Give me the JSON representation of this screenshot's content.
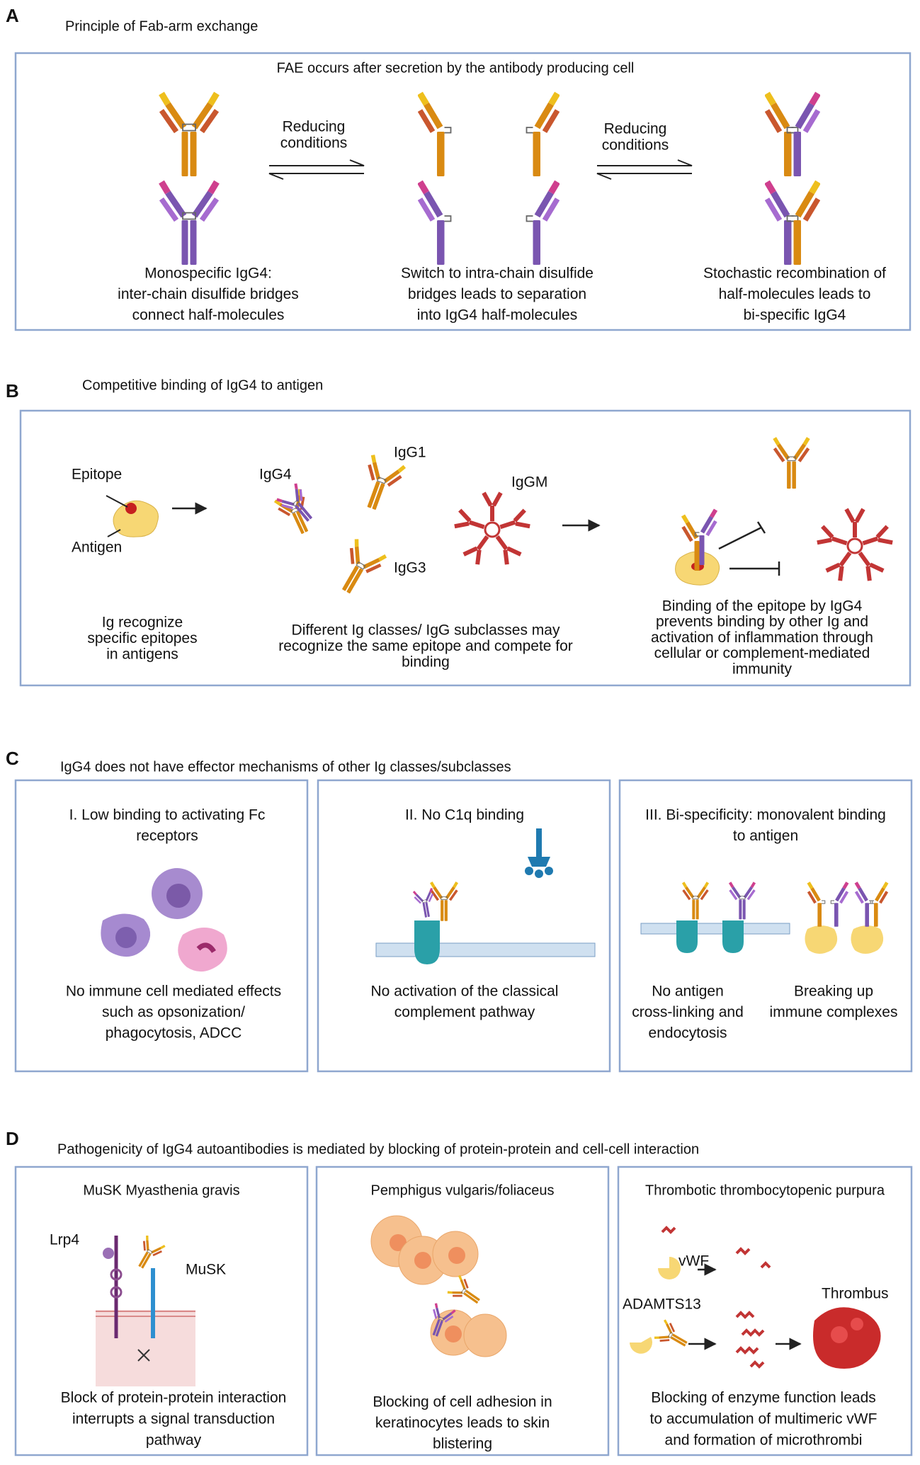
{
  "panel_a": {
    "letter": "A",
    "title": "Principle of Fab-arm exchange",
    "subtitle": "FAE occurs after secretion by the antibody producing cell",
    "arrow_labels": [
      [
        "Reducing",
        "conditions"
      ],
      [
        "Reducing",
        "conditions"
      ]
    ],
    "captions": [
      [
        "Monospecific IgG4:",
        "inter-chain disulfide bridges",
        "connect half-molecules"
      ],
      [
        "Switch to intra-chain disulfide",
        "bridges leads to separation",
        "into IgG4 half-molecules"
      ],
      [
        "Stochastic recombination of",
        "half-molecules leads to",
        "bi-specific IgG4"
      ]
    ]
  },
  "panel_b": {
    "letter": "B",
    "title": "Competitive binding of IgG4 to antigen",
    "labels": [
      "Epitope",
      "Antigen",
      "IgG4",
      "IgG1",
      "IgGM",
      "IgG3"
    ],
    "captions": [
      [
        "Ig recognize",
        "specific epitopes",
        "in antigens"
      ],
      [
        "Different Ig classes/ IgG subclasses may",
        "recognize the same epitope and compete for",
        "binding"
      ],
      [
        "Binding of the epitope by IgG4",
        "prevents binding by other Ig and",
        "activation of inflammation through",
        "cellular or complement-mediated",
        "immunity"
      ]
    ]
  },
  "panel_c": {
    "letter": "C",
    "title": "IgG4 does not have  effector mechanisms of other Ig classes/subclasses",
    "boxes": [
      {
        "title": [
          "I. Low binding to activating Fc",
          "receptors"
        ],
        "captions": [
          [
            "No immune cell mediated effects",
            "such as opsonization/",
            "phagocytosis, ADCC"
          ]
        ]
      },
      {
        "title": [
          "II. No C1q binding"
        ],
        "captions": [
          [
            "No activation of the classical",
            "complement pathway"
          ]
        ]
      },
      {
        "title": [
          "III. Bi-specificity: monovalent binding",
          "to antigen"
        ],
        "captions": [
          [
            "No antigen",
            "cross-linking and",
            "endocytosis"
          ],
          [
            "Breaking up",
            "immune complexes"
          ]
        ]
      }
    ]
  },
  "panel_d": {
    "letter": "D",
    "title": "Pathogenicity of IgG4 autoantibodies is mediated by blocking of protein-protein and cell-cell interaction",
    "boxes": [
      {
        "title": "MuSK Myasthenia gravis",
        "labels": [
          "Lrp4",
          "MuSK"
        ],
        "caption": [
          "Block of protein-protein interaction",
          "interrupts a signal transduction",
          "pathway"
        ]
      },
      {
        "title": "Pemphigus vulgaris/foliaceus",
        "caption": [
          "Blocking of cell adhesion in",
          "keratinocytes leads to skin",
          "blistering"
        ]
      },
      {
        "title": "Thrombotic thrombocytopenic purpura",
        "labels": [
          "vWF",
          "ADAMTS13",
          "Thrombus"
        ],
        "caption": [
          "Blocking of enzyme function leads",
          "to accumulation of multimeric vWF",
          "and formation of microthrombi"
        ]
      }
    ]
  }
}
